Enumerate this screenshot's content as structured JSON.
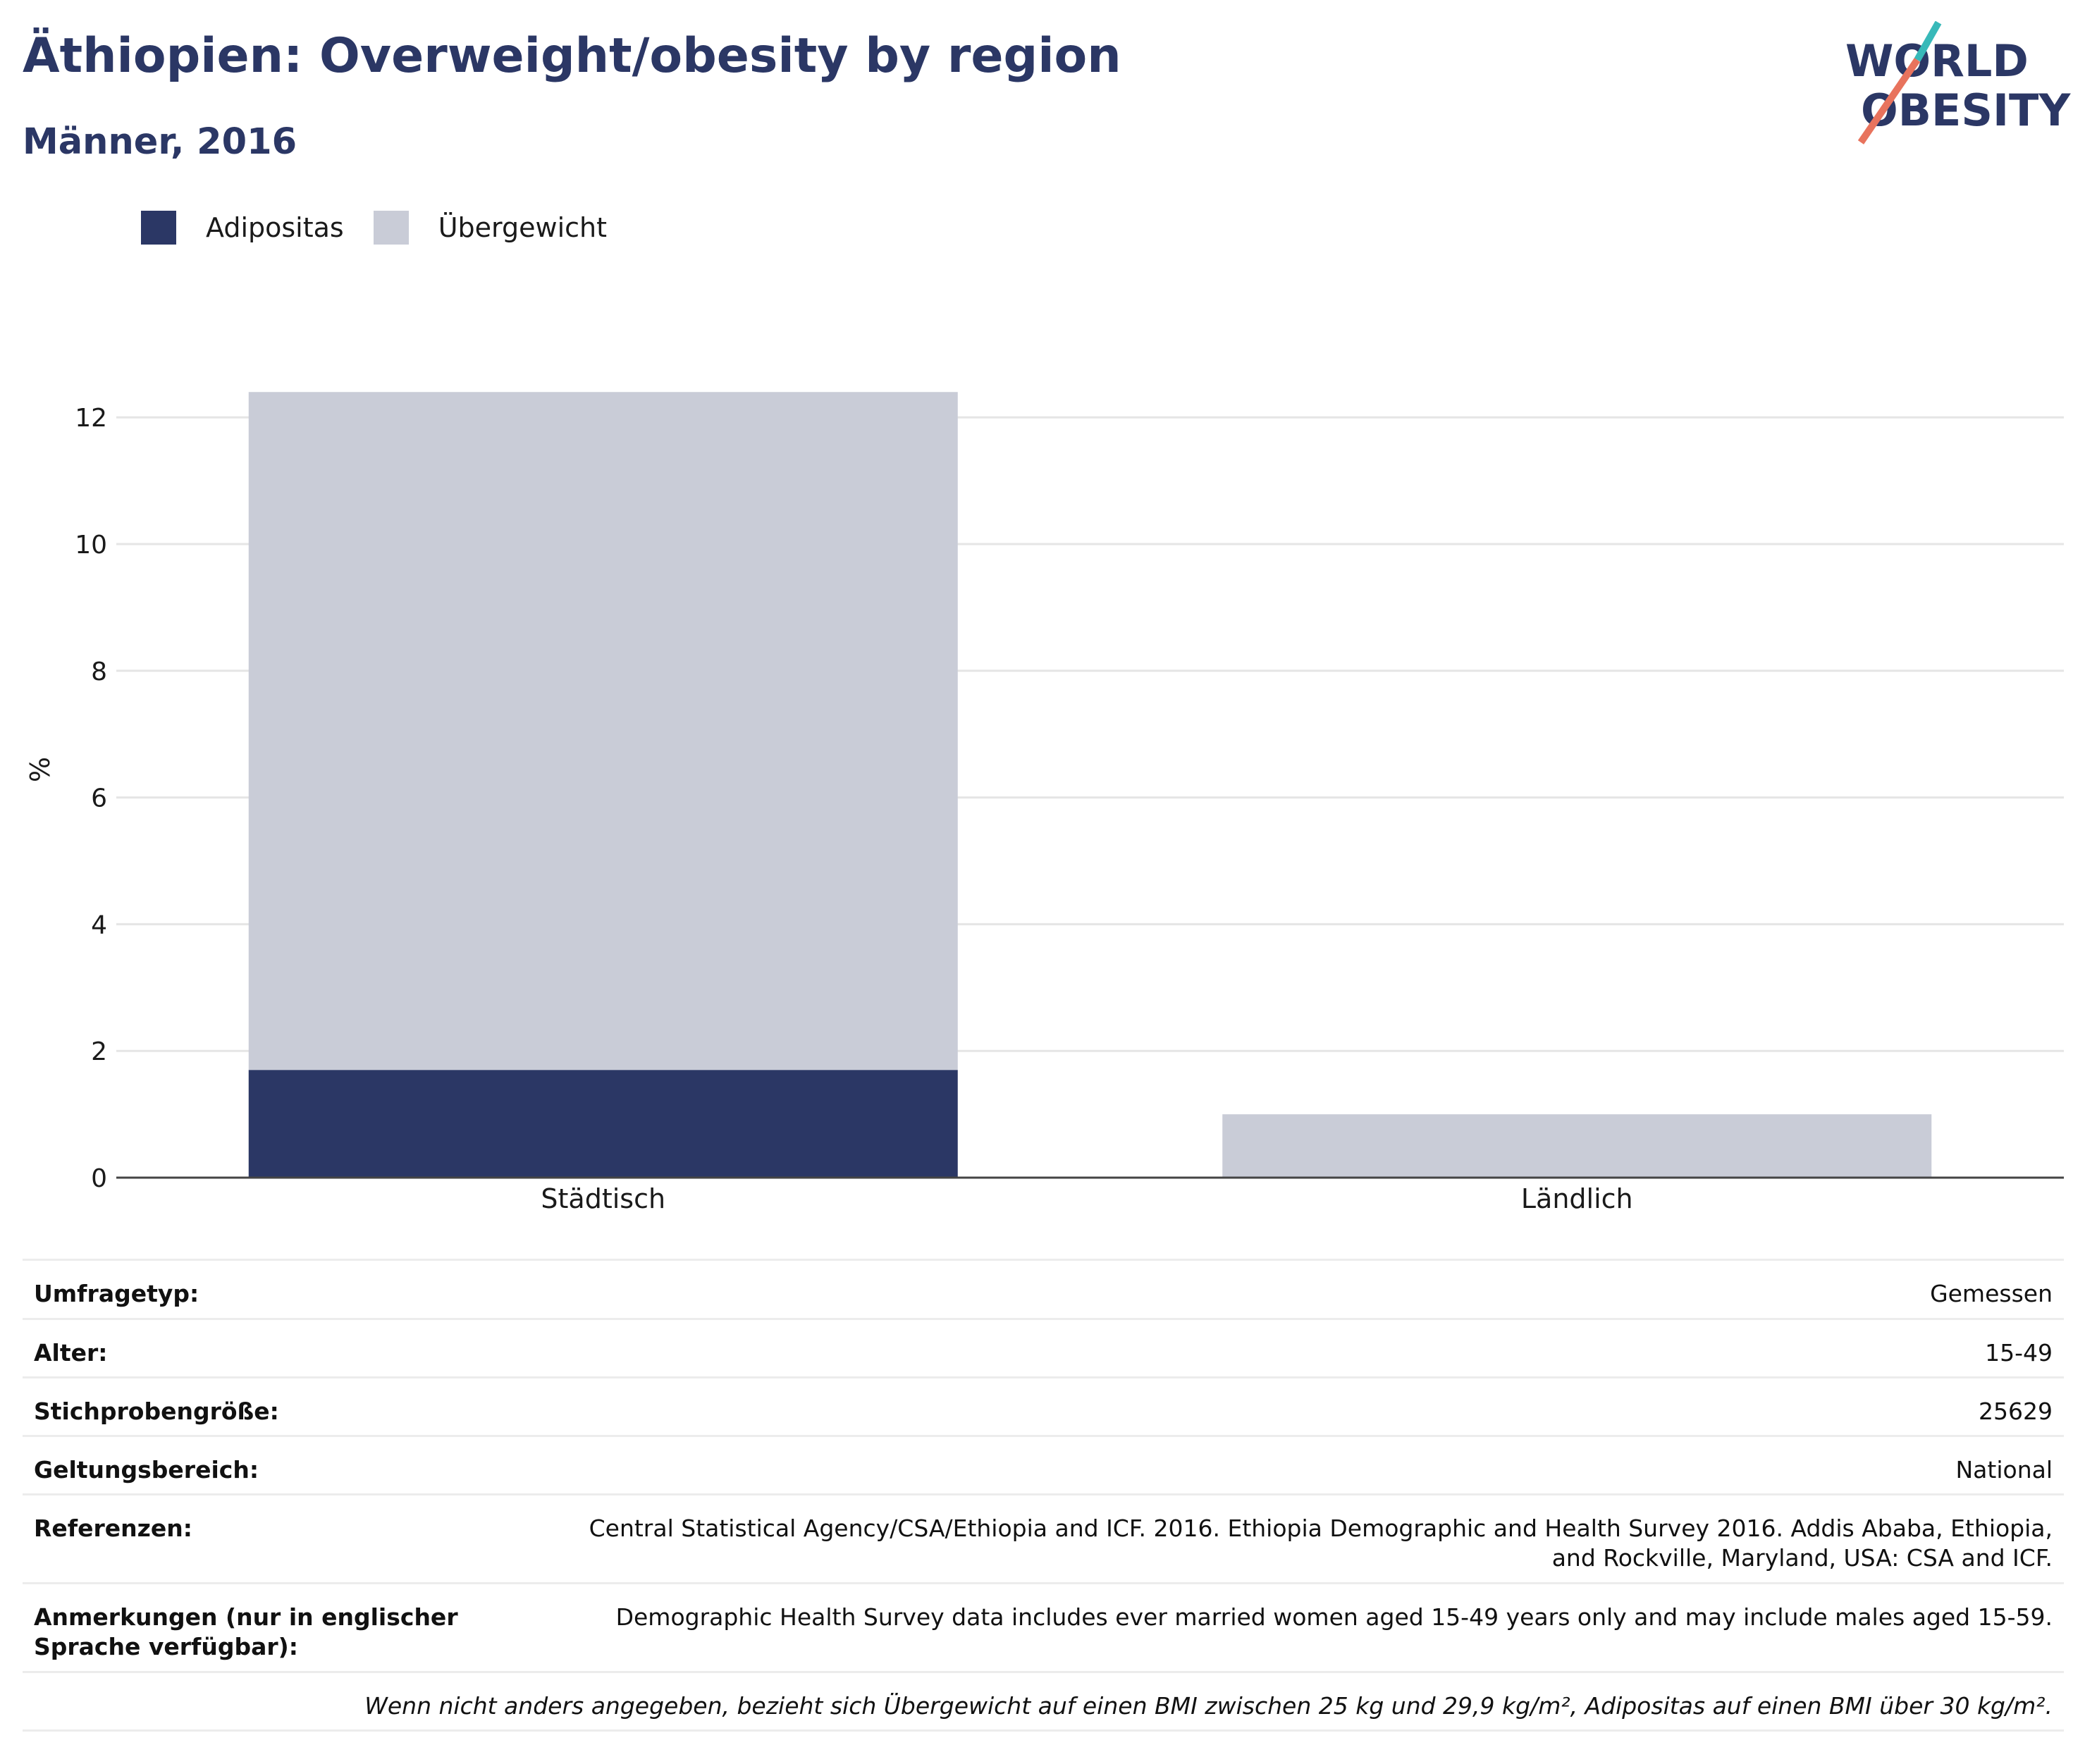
{
  "header": {
    "title": "Äthiopien: Overweight/obesity by region",
    "subtitle": "Männer, 2016"
  },
  "logo": {
    "line1": "WORLD",
    "line2": "OBESITY",
    "colors": {
      "text": "#2b3765",
      "slash_top": "#38b9b9",
      "slash_bottom": "#e8735d"
    }
  },
  "colors": {
    "obesity": "#2b3765",
    "overweight": "#c9ccd7",
    "grid": "#e5e5e5",
    "axis": "#444444"
  },
  "chart_data": {
    "type": "bar",
    "stacked": true,
    "categories": [
      "Städtisch",
      "Ländlich"
    ],
    "series": [
      {
        "name": "Adipositas",
        "values": [
          1.7,
          0.0
        ]
      },
      {
        "name": "Übergewicht",
        "values": [
          10.7,
          1.0
        ]
      }
    ],
    "ylabel": "%",
    "ylim": [
      0,
      13
    ],
    "yticks": [
      0,
      2,
      4,
      6,
      8,
      10,
      12
    ],
    "grid": true,
    "legend_position": "top-left"
  },
  "info_table": [
    {
      "label": "Umfragetyp:",
      "value": "Gemessen"
    },
    {
      "label": "Alter:",
      "value": "15-49"
    },
    {
      "label": "Stichprobengröße:",
      "value": "25629"
    },
    {
      "label": "Geltungsbereich:",
      "value": "National"
    },
    {
      "label": "Referenzen:",
      "value": "Central Statistical Agency/CSA/Ethiopia and ICF. 2016. Ethiopia Demographic and Health Survey 2016. Addis Ababa, Ethiopia, and Rockville, Maryland, USA: CSA and ICF."
    },
    {
      "label": "Anmerkungen (nur in englischer Sprache verfügbar):",
      "value": "Demographic Health Survey data includes ever married women aged 15-49 years only and may include males aged 15-59."
    }
  ],
  "footnote": "Wenn nicht anders angegeben, bezieht sich Übergewicht auf einen BMI zwischen 25 kg und 29,9 kg/m², Adipositas auf einen BMI über 30 kg/m²."
}
